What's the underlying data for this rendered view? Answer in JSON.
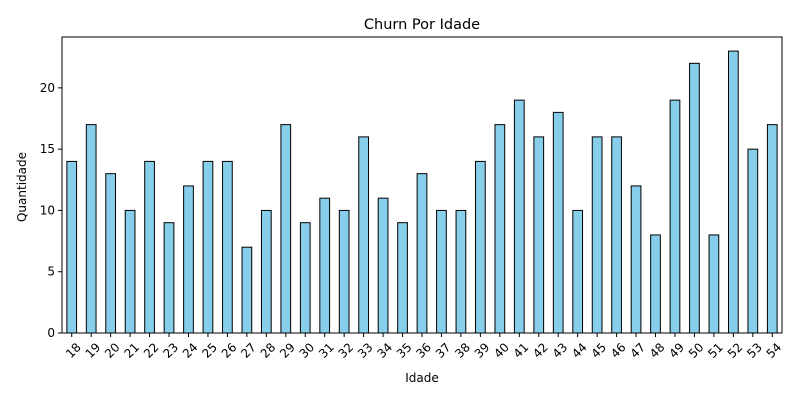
{
  "chart_data": {
    "type": "bar",
    "title": "Churn Por Idade",
    "xlabel": "Idade",
    "ylabel": "Quantidade",
    "categories": [
      "18",
      "19",
      "20",
      "21",
      "22",
      "23",
      "24",
      "25",
      "26",
      "27",
      "28",
      "29",
      "30",
      "31",
      "32",
      "33",
      "34",
      "35",
      "36",
      "37",
      "38",
      "39",
      "40",
      "41",
      "42",
      "43",
      "44",
      "45",
      "46",
      "47",
      "48",
      "49",
      "50",
      "51",
      "52",
      "53",
      "54"
    ],
    "values": [
      14,
      17,
      13,
      10,
      14,
      9,
      12,
      14,
      14,
      7,
      10,
      17,
      9,
      11,
      10,
      16,
      11,
      9,
      13,
      10,
      10,
      14,
      17,
      19,
      16,
      18,
      10,
      16,
      16,
      12,
      8,
      19,
      22,
      8,
      23,
      15,
      17
    ],
    "ylim": [
      0,
      24.15
    ],
    "yticks": [
      0,
      5,
      10,
      15,
      20
    ],
    "grid": false,
    "bar_color": "#87ceeb",
    "edge_color": "#000000"
  }
}
